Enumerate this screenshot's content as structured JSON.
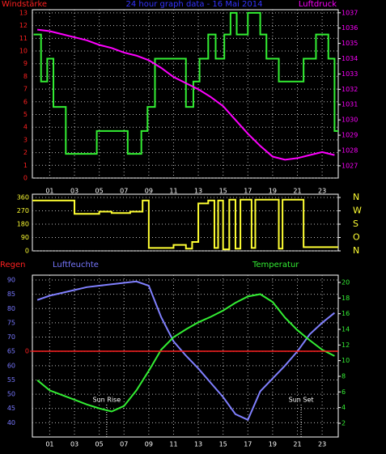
{
  "chart_data": [
    {
      "type": "line",
      "title": "24 hour graph data - 16 Mai 2014",
      "title_color": "#3333ff",
      "ylabel": "Windstärke",
      "ycolor": "#ff2020",
      "y2label": "Luftdruck",
      "y2color": "#ff00ff",
      "xlim": [
        -0.4,
        24.3
      ],
      "xticks": [
        {
          "value": 1,
          "label": "01"
        },
        {
          "value": 3,
          "label": "03"
        },
        {
          "value": 5,
          "label": "05"
        },
        {
          "value": 7,
          "label": "07"
        },
        {
          "value": 9,
          "label": "09"
        },
        11,
        13,
        15,
        17,
        19,
        21,
        23
      ],
      "ylim": [
        0,
        13.25
      ],
      "yticks": [
        0,
        1,
        2,
        3,
        4,
        5,
        6,
        7,
        8,
        9,
        10,
        11,
        12,
        13
      ],
      "y2lim": [
        1026.2,
        1037.2
      ],
      "y2ticks": [
        1027,
        1028,
        1029,
        1030,
        1031,
        1032,
        1033,
        1034,
        1035,
        1036,
        1037
      ],
      "grid": true,
      "series": [
        {
          "color": "#33ee33",
          "step": true,
          "x": [
            -0.3,
            0.3,
            0.8,
            1.3,
            2.3,
            4.8,
            7.3,
            8.4,
            8.9,
            9.5,
            12.0,
            12.6,
            13.1,
            13.8,
            14.4,
            15.1,
            15.6,
            16.1,
            17.0,
            18.0,
            18.5,
            19.5,
            21.5,
            22.5,
            23.5,
            24.0
          ],
          "values": [
            11.3,
            7.6,
            9.4,
            5.6,
            1.9,
            3.7,
            1.9,
            3.7,
            5.6,
            9.4,
            5.6,
            7.6,
            9.4,
            11.3,
            9.4,
            11.3,
            13.0,
            11.3,
            13.0,
            11.3,
            9.4,
            7.6,
            9.4,
            11.3,
            9.4,
            3.7
          ]
        },
        {
          "color": "#ff00ff",
          "axis": "y2",
          "x": [
            0,
            1,
            2,
            3,
            4,
            5,
            6,
            7,
            8,
            9,
            10,
            11,
            12,
            13,
            14,
            15,
            16,
            17,
            18,
            19,
            20,
            21,
            22,
            23,
            24
          ],
          "values": [
            1035.9,
            1035.8,
            1035.6,
            1035.4,
            1035.2,
            1034.9,
            1034.7,
            1034.4,
            1034.2,
            1033.9,
            1033.4,
            1032.8,
            1032.4,
            1032.0,
            1031.5,
            1030.9,
            1030.0,
            1029.1,
            1028.3,
            1027.6,
            1027.4,
            1027.5,
            1027.7,
            1027.9,
            1027.7
          ]
        }
      ]
    },
    {
      "type": "line",
      "ycolor": "#ffff33",
      "y2color": "#ffff33",
      "xlim": [
        -0.4,
        24.3
      ],
      "ylim": [
        0,
        382
      ],
      "yticks": [
        0,
        90,
        180,
        270,
        360
      ],
      "y2lim": [
        0,
        382
      ],
      "y2ticks": [
        {
          "value": 360,
          "label": "N"
        },
        {
          "value": 270,
          "label": "W"
        },
        {
          "value": 180,
          "label": "S"
        },
        {
          "value": 90,
          "label": "O"
        },
        {
          "value": 0,
          "label": "N"
        }
      ],
      "grid": true,
      "series": [
        {
          "color": "#ffff33",
          "step": true,
          "x": [
            -0.4,
            3.0,
            5.0,
            6.0,
            7.5,
            8.5,
            9.0,
            11.0,
            12.0,
            12.5,
            13.0,
            13.8,
            14.3,
            14.6,
            15.0,
            15.5,
            16.0,
            16.4,
            17.3,
            17.6,
            19.5,
            19.8,
            21.5
          ],
          "values": [
            340,
            250,
            265,
            255,
            265,
            340,
            20,
            40,
            15,
            60,
            320,
            340,
            20,
            340,
            10,
            345,
            15,
            345,
            20,
            345,
            15,
            345,
            25
          ]
        }
      ]
    },
    {
      "type": "line",
      "ylabel": "Luftfeuchte",
      "ycolor": "#7777ff",
      "y2label": "Temperatur",
      "y2color": "#33ee33",
      "y3label": "Regen",
      "y3color": "#ff2020",
      "xlim": [
        -0.4,
        24.3
      ],
      "xticks": [
        {
          "value": 1,
          "label": "01"
        },
        {
          "value": 3,
          "label": "03"
        },
        {
          "value": 5,
          "label": "05"
        },
        {
          "value": 7,
          "label": "07"
        },
        {
          "value": 9,
          "label": "09"
        },
        11,
        13,
        15,
        17,
        19,
        21,
        23
      ],
      "ylim": [
        35,
        91.7
      ],
      "yticks": [
        40,
        45,
        50,
        55,
        60,
        65,
        70,
        75,
        80,
        85,
        90
      ],
      "y2lim": [
        0.24,
        20.93
      ],
      "y2ticks": [
        2,
        4,
        6,
        8,
        10,
        12,
        14,
        16,
        18,
        20
      ],
      "y3lim": [
        -1.06,
        0.94
      ],
      "y3ticks": [
        0
      ],
      "grid": true,
      "series": [
        {
          "color": "#8080ff",
          "x": [
            0,
            1,
            2,
            3,
            4,
            5,
            6,
            7,
            8,
            9,
            10,
            11,
            12,
            13,
            14,
            15,
            16,
            17,
            18,
            19,
            20,
            21,
            22,
            23,
            24
          ],
          "values": [
            83,
            84.5,
            85.5,
            86.5,
            87.5,
            88,
            88.5,
            89,
            89.5,
            88,
            77,
            68.5,
            63.5,
            59,
            54,
            49,
            43,
            41,
            51,
            55.5,
            60,
            65,
            71,
            75,
            78.5
          ]
        },
        {
          "color": "#33ee33",
          "axis": "y2",
          "x": [
            0,
            1,
            2,
            3,
            4,
            5,
            6,
            7,
            8,
            9,
            10,
            11,
            12,
            13,
            14,
            15,
            16,
            17,
            18,
            19,
            20,
            21,
            22,
            23,
            24
          ],
          "values": [
            7.5,
            6.2,
            5.6,
            5.0,
            4.4,
            3.9,
            3.5,
            4.2,
            6.2,
            8.7,
            11.4,
            13.0,
            14.0,
            14.9,
            15.6,
            16.4,
            17.4,
            18.2,
            18.5,
            17.5,
            15.5,
            13.9,
            12.6,
            11.4,
            10.6
          ]
        },
        {
          "color": "#ff2020",
          "axis": "y3",
          "x": [
            -0.4,
            24.3
          ],
          "values": [
            0,
            0
          ]
        }
      ],
      "annotations": [
        {
          "text": "Sun Rise",
          "x": 5.6
        },
        {
          "text": "Sun Set",
          "x": 21.3
        }
      ]
    }
  ]
}
